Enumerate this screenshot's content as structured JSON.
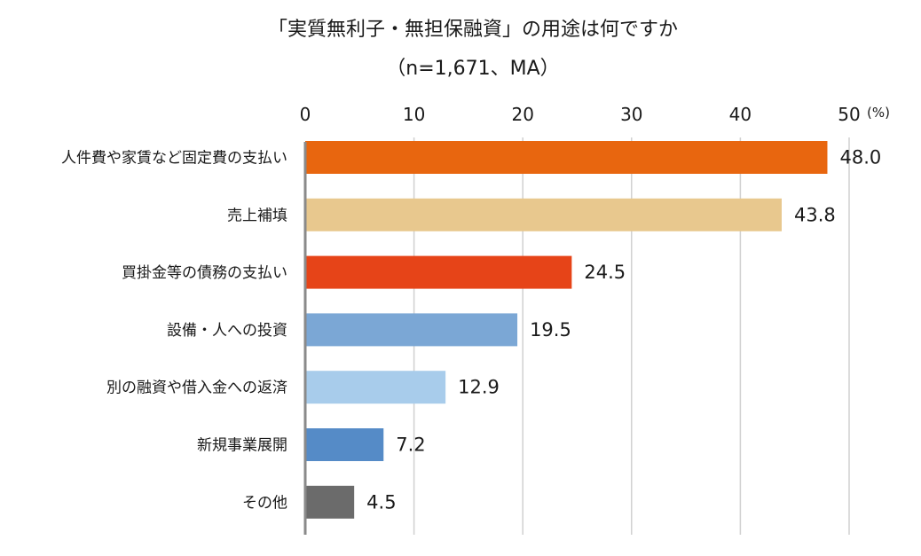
{
  "title": "「実質無利子・無担保融資」の用途は何ですか",
  "subtitle": "（n=1,671、MA）",
  "chart_data": {
    "type": "bar",
    "orientation": "horizontal",
    "title": "「実質無利子・無担保融資」の用途は何ですか",
    "subtitle": "（n=1,671、MA）",
    "unit_label": "(%)",
    "xlabel": "",
    "ylabel": "",
    "xlim": [
      0,
      50
    ],
    "ticks": [
      0,
      10,
      20,
      30,
      40,
      50
    ],
    "tick_position": "top",
    "grid": true,
    "legend": "none",
    "categories": [
      "人件費や家賃など固定費の支払い",
      "売上補填",
      "買掛金等の債務の支払い",
      "設備・人への投資",
      "別の融資や借入金への返済",
      "新規事業展開",
      "その他"
    ],
    "values": [
      48.0,
      43.8,
      24.5,
      19.5,
      12.9,
      7.2,
      4.5
    ],
    "value_labels": [
      "48.0",
      "43.8",
      "24.5",
      "19.5",
      "12.9",
      "7.2",
      "4.5"
    ],
    "colors": [
      "#E8660F",
      "#E8C88E",
      "#E64418",
      "#7BA7D5",
      "#A8CCEB",
      "#558BC7",
      "#6B6B6B"
    ]
  }
}
